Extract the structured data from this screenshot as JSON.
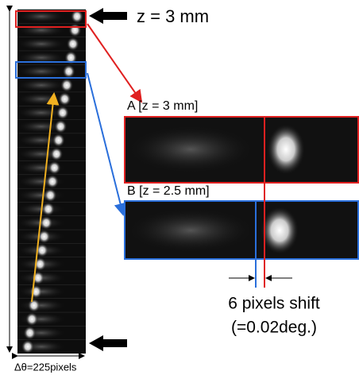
{
  "labels": {
    "top_z": "z = 3 mm",
    "panel_a": "A [z = 3 mm]",
    "panel_b": "B [z = 2.5 mm]",
    "shift": "6 pixels shift",
    "shift_deg": "(=0.02deg.)",
    "width": "Δθ=225pixels"
  }
}
